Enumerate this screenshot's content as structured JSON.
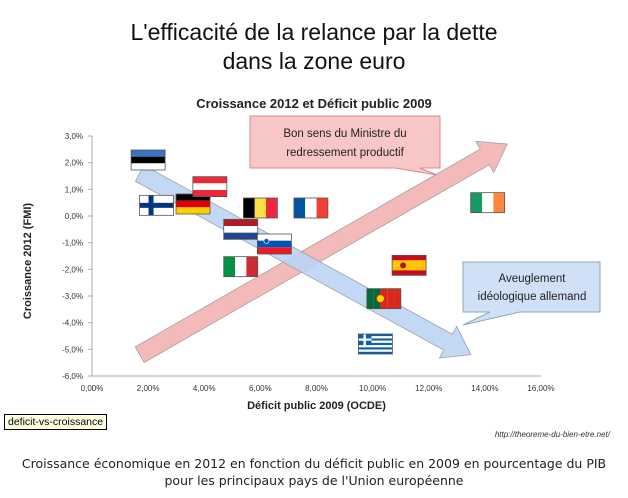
{
  "title_line1": "L'efficacité de la relance par la dette",
  "title_line2": "dans la zone euro",
  "source": "http://theoreme-du-bien-etre.net/",
  "caption_line1": "Croissance économique en 2012 en fonction du déficit public en 2009 en pourcentage du PIB",
  "caption_line2": "pour les principaux pays de l'Union européenne",
  "tooltip": "deficit-vs-croissance",
  "callouts": {
    "pink": {
      "line1": "Bon sens du Ministre du",
      "line2": "redressement  productif",
      "fill": "#f7c6c6",
      "stroke": "#d88"
    },
    "blue": {
      "line1": "Aveuglement",
      "line2": "idéologique  allemand",
      "fill": "#cfe0f7",
      "stroke": "#8ab"
    }
  },
  "chart_data": {
    "type": "scatter",
    "title": "Croissance 2012 et Déficit public 2009",
    "xlabel": "Déficit public 2009 (OCDE)",
    "ylabel": "Croissance 2012 (FMI)",
    "xlim": [
      0,
      16
    ],
    "ylim": [
      -6,
      3
    ],
    "xticks": [
      "0,00%",
      "2,00%",
      "4,00%",
      "6,00%",
      "8,00%",
      "10,00%",
      "12,00%",
      "14,00%",
      "16,00%"
    ],
    "yticks": [
      "3,0%",
      "2,0%",
      "1,0%",
      "0,0%",
      "-1,0%",
      "-2,0%",
      "-3,0%",
      "-4,0%",
      "-5,0%",
      "-6,0%"
    ],
    "grid": false,
    "marker": "flags",
    "points": [
      {
        "flag": "estonia-flag-icon",
        "x": 2.0,
        "y": 2.1
      },
      {
        "flag": "finland-flag-icon",
        "x": 2.3,
        "y": 0.4
      },
      {
        "flag": "germany-flag-icon",
        "x": 3.6,
        "y": 0.45
      },
      {
        "flag": "austria-flag-icon",
        "x": 4.2,
        "y": 1.1
      },
      {
        "flag": "belgium-flag-icon",
        "x": 6.0,
        "y": 0.3
      },
      {
        "flag": "netherlands-flag-icon",
        "x": 5.3,
        "y": -0.5
      },
      {
        "flag": "slovenia-flag-icon",
        "x": 6.5,
        "y": -1.05
      },
      {
        "flag": "italy-flag-icon",
        "x": 5.3,
        "y": -1.9
      },
      {
        "flag": "france-flag-icon",
        "x": 7.8,
        "y": 0.3
      },
      {
        "flag": "spain-flag-icon",
        "x": 11.3,
        "y": -1.85
      },
      {
        "flag": "portugal-flag-icon",
        "x": 10.4,
        "y": -3.1
      },
      {
        "flag": "greece-flag-icon",
        "x": 10.1,
        "y": -4.8
      },
      {
        "flag": "ireland-flag-icon",
        "x": 14.1,
        "y": 0.5
      }
    ],
    "arrows": [
      {
        "name": "pink-rising-arrow",
        "from": [
          1.7,
          -5.2
        ],
        "to": [
          14.8,
          2.7
        ],
        "color": "#f3b3b3"
      },
      {
        "name": "blue-falling-arrow",
        "from": [
          1.7,
          1.6
        ],
        "to": [
          13.5,
          -5.2
        ],
        "color": "#bcd4f3"
      }
    ]
  }
}
